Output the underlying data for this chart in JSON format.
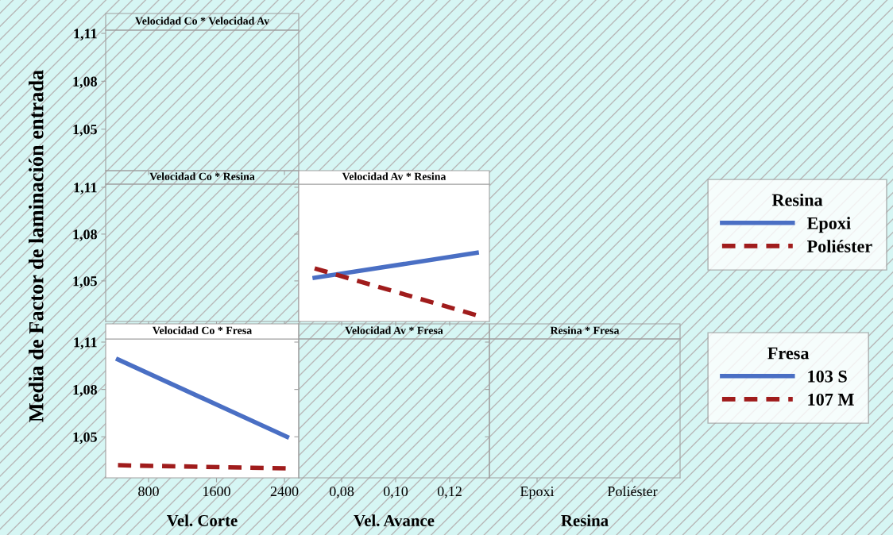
{
  "chart_data": [
    {
      "type": "line",
      "title": "Velocidad Co * Velocidad Av",
      "ylabel": "Media de Factor de laminación entrada",
      "xlim": [
        295,
        2568
      ],
      "xticks": [
        800,
        1600,
        2400
      ],
      "ylim": [
        1.024,
        1.112
      ],
      "yticks": [
        {
          "value": 1.05,
          "label": "1,05"
        },
        {
          "value": 1.08,
          "label": "1,08"
        },
        {
          "value": 1.11,
          "label": "1,11"
        }
      ],
      "tick_labels": "y"
    },
    {
      "type": "line",
      "title": "Velocidad Co * Resina",
      "xlim": [
        295,
        2568
      ],
      "xticks": [
        800,
        1600,
        2400
      ],
      "ylim": [
        1.024,
        1.112
      ],
      "yticks": [
        {
          "value": 1.05,
          "label": "1,05"
        },
        {
          "value": 1.08,
          "label": "1,08"
        },
        {
          "value": 1.11,
          "label": "1,11"
        }
      ],
      "tick_labels": "y"
    },
    {
      "type": "line",
      "title": "Velocidad Av * Resina",
      "legend_title": "Resina",
      "legend": "right",
      "xlim": [
        0.0641,
        0.1347
      ],
      "xticks": [
        0.08,
        0.1,
        0.12
      ],
      "ylim": [
        1.024,
        1.112
      ],
      "yticks": [
        1.05,
        1.08,
        1.11
      ],
      "tick_labels": false,
      "series": [
        {
          "name": "Epoxi",
          "color": "#4a6fc4",
          "line_style": "solid",
          "x": [
            0.07,
            0.13
          ],
          "values": [
            1.052,
            1.068
          ]
        },
        {
          "name": "Poliéster",
          "color": "#a01c1c",
          "line_style": "dashed",
          "x": [
            0.07,
            0.13
          ],
          "values": [
            1.058,
            1.028
          ]
        }
      ]
    },
    {
      "type": "line",
      "title": "Velocidad Co * Fresa",
      "xlabel": "Vel. Corte",
      "legend_title": "Fresa",
      "legend": "right",
      "xlim": [
        295,
        2568
      ],
      "xticks": [
        800,
        1600,
        2400
      ],
      "ylim": [
        1.024,
        1.112
      ],
      "yticks": [
        {
          "value": 1.05,
          "label": "1,05"
        },
        {
          "value": 1.08,
          "label": "1,08"
        },
        {
          "value": 1.11,
          "label": "1,11"
        }
      ],
      "series": [
        {
          "name": "103 S",
          "color": "#4a6fc4",
          "line_style": "solid",
          "x": [
            440,
            2430
          ],
          "values": [
            1.099,
            1.05
          ]
        },
        {
          "name": "107 M",
          "color": "#a01c1c",
          "line_style": "dashed",
          "x": [
            440,
            2430
          ],
          "values": [
            1.032,
            1.03
          ]
        }
      ]
    },
    {
      "type": "line",
      "title": "Velocidad Av * Fresa",
      "xlabel": "Vel. Avance",
      "xlim": [
        0.0641,
        0.1347
      ],
      "xticks": [
        {
          "value": 0.08,
          "label": "0,08"
        },
        {
          "value": 0.1,
          "label": "0,10"
        },
        {
          "value": 0.12,
          "label": "0,12"
        }
      ],
      "ylim": [
        1.024,
        1.112
      ],
      "yticks": [
        1.05,
        1.08,
        1.11
      ],
      "tick_labels": "x"
    },
    {
      "type": "line",
      "title": "Resina * Fresa",
      "xlabel": "Resina",
      "categories": [
        "Epoxi",
        "Poliéster"
      ],
      "ylim": [
        1.024,
        1.112
      ],
      "yticks": [
        1.05,
        1.08,
        1.11
      ],
      "tick_labels": "x"
    }
  ]
}
